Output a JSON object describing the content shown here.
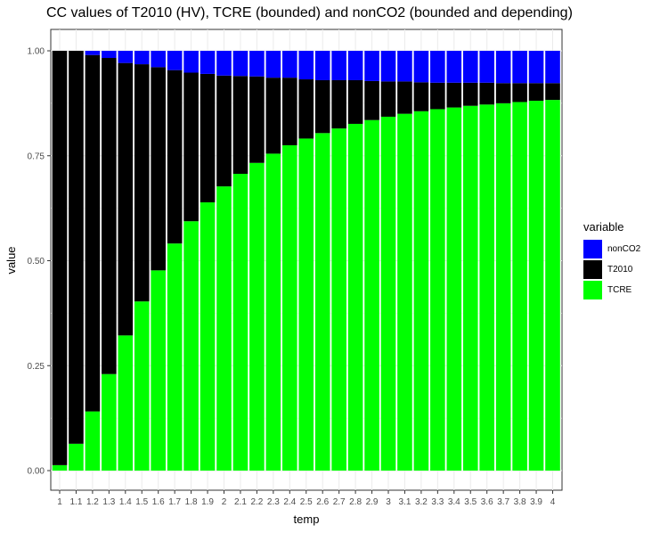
{
  "chart_data": {
    "type": "bar",
    "stacked": true,
    "title": "CC values of T2010 (HV), TCRE (bounded) and nonCO2 (bounded and depending)",
    "xlabel": "temp",
    "ylabel": "value",
    "ylim": [
      0,
      1
    ],
    "y_ticks": [
      "0.00",
      "0.25",
      "0.50",
      "0.75",
      "1.00"
    ],
    "categories": [
      "1",
      "1.1",
      "1.2",
      "1.3",
      "1.4",
      "1.5",
      "1.6",
      "1.7",
      "1.8",
      "1.9",
      "2",
      "2.1",
      "2.2",
      "2.3",
      "2.4",
      "2.5",
      "2.6",
      "2.7",
      "2.8",
      "2.9",
      "3",
      "3.1",
      "3.2",
      "3.3",
      "3.4",
      "3.5",
      "3.6",
      "3.7",
      "3.8",
      "3.9",
      "4"
    ],
    "legend_title": "variable",
    "legend_position": "right",
    "grid": true,
    "series": [
      {
        "name": "TCRE",
        "color": "#00ff00",
        "values": [
          0.013,
          0.064,
          0.141,
          0.23,
          0.322,
          0.403,
          0.477,
          0.541,
          0.594,
          0.639,
          0.677,
          0.707,
          0.733,
          0.755,
          0.775,
          0.791,
          0.804,
          0.815,
          0.826,
          0.835,
          0.843,
          0.85,
          0.856,
          0.861,
          0.865,
          0.869,
          0.872,
          0.875,
          0.878,
          0.881,
          0.883
        ]
      },
      {
        "name": "T2010",
        "color": "#000000",
        "values": [
          0.987,
          0.936,
          0.849,
          0.753,
          0.649,
          0.565,
          0.484,
          0.413,
          0.354,
          0.306,
          0.264,
          0.233,
          0.206,
          0.181,
          0.161,
          0.141,
          0.126,
          0.115,
          0.104,
          0.093,
          0.084,
          0.077,
          0.069,
          0.063,
          0.059,
          0.055,
          0.052,
          0.048,
          0.045,
          0.042,
          0.04
        ]
      },
      {
        "name": "nonCO2",
        "color": "#0000ff",
        "values": [
          0.0,
          0.0,
          0.01,
          0.017,
          0.029,
          0.032,
          0.039,
          0.046,
          0.052,
          0.055,
          0.059,
          0.06,
          0.061,
          0.064,
          0.064,
          0.068,
          0.07,
          0.07,
          0.07,
          0.072,
          0.073,
          0.073,
          0.075,
          0.076,
          0.076,
          0.076,
          0.076,
          0.077,
          0.077,
          0.077,
          0.077
        ]
      }
    ],
    "legend_order": [
      "nonCO2",
      "T2010",
      "TCRE"
    ]
  }
}
